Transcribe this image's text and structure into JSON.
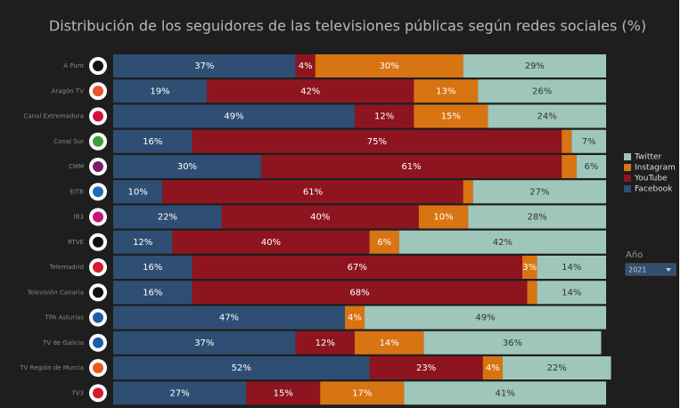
{
  "chart_data": {
    "type": "stacked-bar-horizontal",
    "title": "Distribución de los seguidores de las televisiones públicas según redes sociales (%)",
    "categories": [
      "À Punt",
      "Aragón TV",
      "Canal Extremadura",
      "Canal Sur",
      "CMM",
      "EITB",
      "IB3",
      "RTVE",
      "Telemadrid",
      "Televisión Canaria",
      "TPA Asturias",
      "TV de Galicia",
      "TV Región de Murcia",
      "TV3"
    ],
    "xlim": [
      0,
      100
    ],
    "series": [
      {
        "name": "Facebook",
        "color": "#2e4f73",
        "values": [
          37,
          19,
          49,
          16,
          30,
          10,
          22,
          12,
          16,
          16,
          47,
          37,
          52,
          27
        ],
        "value_labels": [
          "37%",
          "19%",
          "49%",
          "16%",
          "30%",
          "10%",
          "22%",
          "12%",
          "16%",
          "16%",
          "47%",
          "37%",
          "52%",
          "27%"
        ]
      },
      {
        "name": "YouTube",
        "color": "#8e1520",
        "values": [
          4,
          42,
          12,
          75,
          61,
          61,
          40,
          40,
          67,
          68,
          0,
          12,
          23,
          15
        ],
        "value_labels": [
          "4%",
          "42%",
          "12%",
          "75%",
          "61%",
          "61%",
          "40%",
          "40%",
          "67%",
          "68%",
          null,
          "12%",
          "23%",
          "15%"
        ]
      },
      {
        "name": "Instagram",
        "color": "#d97412",
        "values": [
          30,
          13,
          15,
          2,
          3,
          2,
          10,
          6,
          3,
          2,
          4,
          14,
          4,
          17
        ],
        "value_labels": [
          "30%",
          "13%",
          "15%",
          null,
          null,
          null,
          "10%",
          "6%",
          "3%",
          null,
          "4%",
          "14%",
          "4%",
          "17%"
        ]
      },
      {
        "name": "Twitter",
        "color": "#9fc6bb",
        "values": [
          29,
          26,
          24,
          7,
          6,
          27,
          28,
          42,
          14,
          14,
          49,
          36,
          22,
          41
        ],
        "value_labels": [
          "29%",
          "26%",
          "24%",
          "7%",
          "6%",
          "27%",
          "28%",
          "42%",
          "14%",
          "14%",
          "49%",
          "36%",
          "22%",
          "41%"
        ]
      }
    ],
    "legend_order": [
      "Twitter",
      "Instagram",
      "YouTube",
      "Facebook"
    ],
    "filter": {
      "label": "Año",
      "value": "2021"
    }
  }
}
